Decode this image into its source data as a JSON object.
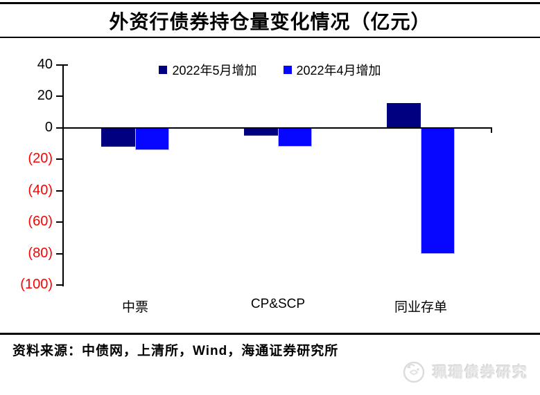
{
  "title": "外资行债券持仓量变化情况（亿元）",
  "source_note": "资料来源：中债网，上清所，Wind，海通证券研究所",
  "watermark": {
    "brand_text": "珮珊债券研究",
    "logo_icon": "sketch-cat-circle-logo"
  },
  "colors": {
    "bar_may": "#000080",
    "bar_april": "#0707ff",
    "negative_tick_label": "#ff0000",
    "rule": "#000000",
    "watermark_gray": "#e3e3e3"
  },
  "chart_data": {
    "type": "bar",
    "title": "外资行债券持仓量变化情况（亿元）",
    "unit": "亿元",
    "categories": [
      "中票",
      "CP&SCP",
      "同业存单"
    ],
    "series": [
      {
        "name": "2022年5月增加",
        "color": "#000080",
        "values": [
          -12,
          -5,
          16
        ]
      },
      {
        "name": "2022年4月增加",
        "color": "#0707ff",
        "values": [
          -14,
          -12,
          -80
        ]
      }
    ],
    "ylim": [
      -100,
      40
    ],
    "ytick_step": 20,
    "yticks": [
      {
        "value": 40,
        "label": "40"
      },
      {
        "value": 20,
        "label": "20"
      },
      {
        "value": 0,
        "label": "0"
      },
      {
        "value": -20,
        "label": "(20)"
      },
      {
        "value": -40,
        "label": "(40)"
      },
      {
        "value": -60,
        "label": "(60)"
      },
      {
        "value": -80,
        "label": "(80)"
      },
      {
        "value": -100,
        "label": "(100)"
      }
    ],
    "grid": false,
    "legend_position": "top-center",
    "negative_labels_style": "red-parentheses"
  }
}
